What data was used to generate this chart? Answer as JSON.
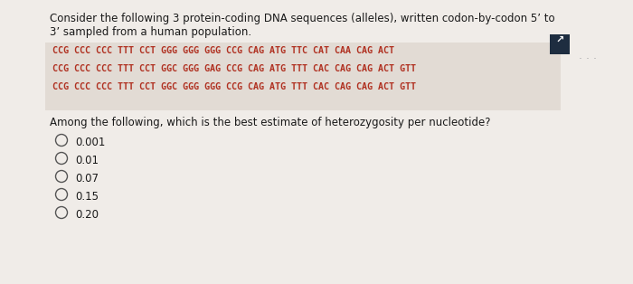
{
  "title_line1": "Consider the following 3 protein-coding DNA sequences (alleles), written codon-by-codon 5’ to",
  "title_line2": "3’ sampled from a human population.",
  "seq1": "CCG CCC CCC TTT CCT GGG GGG GGG CCG CAG ATG TTC CAT CAA CAG ACT",
  "seq2": "CCG CCC CCC TTT CCT GGC GGG GAG CCG CAG ATG TTT CAC CAG CAG ACT GTT",
  "seq3": "CCG CCC CCC TTT CCT GGC GGG GGG CCG CAG ATG TTT CAC CAG CAG ACT GTT",
  "question": "Among the following, which is the best estimate of heterozygosity per nucleotide?",
  "options": [
    "0.001",
    "0.01",
    "0.07",
    "0.15",
    "0.20"
  ],
  "bg_color": "#f0ece8",
  "seq_box_color": "#e2dbd4",
  "text_color": "#1a1a1a",
  "seq_color": "#b03020",
  "option_circle_color": "#555555"
}
